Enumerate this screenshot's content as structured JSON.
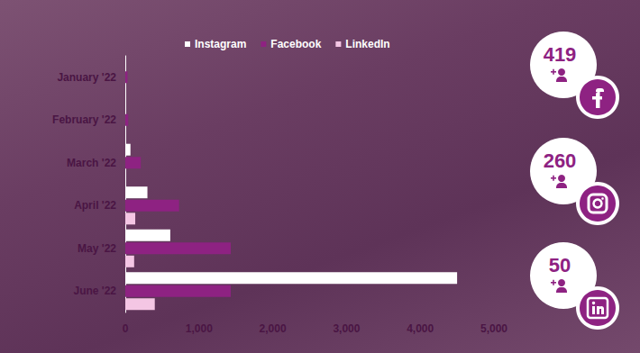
{
  "chart_data": {
    "type": "bar",
    "orientation": "horizontal",
    "categories": [
      "January '22",
      "February '22",
      "March '22",
      "April '22",
      "May '22",
      "June '22"
    ],
    "series": [
      {
        "name": "Instagram",
        "color": "#ffffff",
        "values": [
          0,
          0,
          70,
          300,
          610,
          4500
        ]
      },
      {
        "name": "Facebook",
        "color": "#8e2282",
        "values": [
          30,
          40,
          210,
          730,
          1430,
          1430
        ]
      },
      {
        "name": "LinkedIn",
        "color": "#f4c6e4",
        "values": [
          0,
          0,
          0,
          135,
          120,
          400
        ]
      }
    ],
    "xlim": [
      0,
      5000
    ],
    "xticks": [
      0,
      {
        "value": 1000,
        "label": "1,000"
      },
      {
        "value": 2000,
        "label": "2,000"
      },
      {
        "value": 3000,
        "label": "3,000"
      },
      {
        "value": 4000,
        "label": "4,000"
      },
      {
        "value": 5000,
        "label": "5,000"
      }
    ],
    "grid": false,
    "legend": "top",
    "annotations": [
      {
        "value": 419,
        "series": "Facebook"
      },
      {
        "value": 260,
        "series": "Instagram"
      },
      {
        "value": 50,
        "series": "LinkedIn"
      }
    ]
  }
}
